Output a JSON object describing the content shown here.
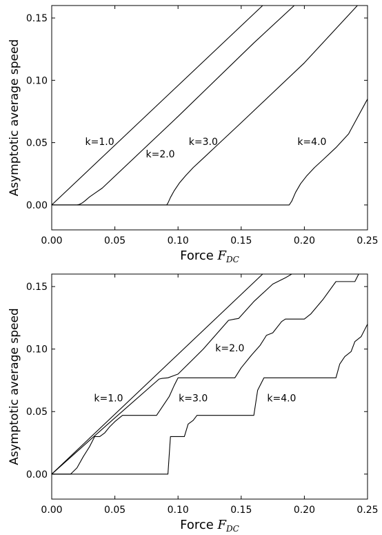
{
  "chart_data": [
    {
      "type": "line",
      "xlabel_prefix": "Force ",
      "xlabel_symbol": "F",
      "xlabel_subscript": "DC",
      "ylabel": "Asymptotic average speed",
      "xlim": [
        0.0,
        0.25
      ],
      "ylim": [
        -0.02,
        0.16
      ],
      "xticks": [
        0.0,
        0.05,
        0.1,
        0.15,
        0.2,
        0.25
      ],
      "xtick_labels": [
        "0.00",
        "0.05",
        "0.10",
        "0.15",
        "0.20",
        "0.25"
      ],
      "yticks": [
        0.0,
        0.05,
        0.1,
        0.15
      ],
      "ytick_labels": [
        "0.00",
        "0.05",
        "0.10",
        "0.15"
      ],
      "grid": false,
      "series": [
        {
          "name": "k=1.0",
          "x": [
            0.0,
            0.167
          ],
          "y": [
            0.0,
            0.16
          ]
        },
        {
          "name": "k=2.0",
          "x": [
            0.0,
            0.02,
            0.022,
            0.024,
            0.026,
            0.03,
            0.035,
            0.04,
            0.1,
            0.16,
            0.192
          ],
          "y": [
            0.0,
            0.0,
            0.0005,
            0.0015,
            0.003,
            0.0065,
            0.01,
            0.0135,
            0.071,
            0.13,
            0.16
          ]
        },
        {
          "name": "k=3.0",
          "x": [
            0.0,
            0.091,
            0.092,
            0.094,
            0.097,
            0.101,
            0.106,
            0.112,
            0.12,
            0.13,
            0.15,
            0.2,
            0.242
          ],
          "y": [
            0.0,
            0.0,
            0.0015,
            0.006,
            0.0115,
            0.0175,
            0.0235,
            0.03,
            0.0375,
            0.047,
            0.066,
            0.114,
            0.16
          ]
        },
        {
          "name": "k=4.0",
          "x": [
            0.0,
            0.188,
            0.19,
            0.193,
            0.197,
            0.202,
            0.208,
            0.215,
            0.225,
            0.235,
            0.25
          ],
          "y": [
            0.0,
            0.0,
            0.003,
            0.01,
            0.017,
            0.0235,
            0.03,
            0.0365,
            0.046,
            0.057,
            0.085
          ]
        }
      ],
      "annotations": [
        {
          "text": "k=1.0",
          "x": 0.038,
          "y": 0.051
        },
        {
          "text": "k=2.0",
          "x": 0.086,
          "y": 0.041
        },
        {
          "text": "k=3.0",
          "x": 0.12,
          "y": 0.051
        },
        {
          "text": "k=4.0",
          "x": 0.206,
          "y": 0.051
        }
      ]
    },
    {
      "type": "line",
      "xlabel_prefix": "Force ",
      "xlabel_symbol": "F",
      "xlabel_subscript": "DC",
      "ylabel": "Asymptotic average speed",
      "xlim": [
        0.0,
        0.25
      ],
      "ylim": [
        -0.02,
        0.16
      ],
      "xticks": [
        0.0,
        0.05,
        0.1,
        0.15,
        0.2,
        0.25
      ],
      "xtick_labels": [
        "0.00",
        "0.05",
        "0.10",
        "0.15",
        "0.20",
        "0.25"
      ],
      "yticks": [
        0.0,
        0.05,
        0.1,
        0.15
      ],
      "ytick_labels": [
        "0.00",
        "0.05",
        "0.10",
        "0.15"
      ],
      "grid": false,
      "series": [
        {
          "name": "k=1.0",
          "x": [
            0.0,
            0.167
          ],
          "y": [
            0.0,
            0.16
          ]
        },
        {
          "name": "k=2.0",
          "x": [
            0.0,
            0.05,
            0.085,
            0.087,
            0.092,
            0.1,
            0.12,
            0.14,
            0.145,
            0.148,
            0.16,
            0.175,
            0.185,
            0.19
          ],
          "y": [
            0.0,
            0.045,
            0.076,
            0.0765,
            0.077,
            0.08,
            0.1,
            0.123,
            0.124,
            0.1245,
            0.138,
            0.152,
            0.157,
            0.16
          ]
        },
        {
          "name": "k=3.0",
          "x": [
            0.0,
            0.015,
            0.02,
            0.025,
            0.03,
            0.034,
            0.038,
            0.042,
            0.046,
            0.05,
            0.056,
            0.083,
            0.087,
            0.093,
            0.097,
            0.1,
            0.145,
            0.15,
            0.158,
            0.165,
            0.17,
            0.175,
            0.182,
            0.185,
            0.2,
            0.205,
            0.215,
            0.225,
            0.24,
            0.243
          ],
          "y": [
            0.0,
            0.0,
            0.005,
            0.014,
            0.022,
            0.03,
            0.03,
            0.033,
            0.038,
            0.042,
            0.047,
            0.047,
            0.053,
            0.062,
            0.071,
            0.077,
            0.077,
            0.085,
            0.095,
            0.103,
            0.111,
            0.113,
            0.122,
            0.124,
            0.124,
            0.128,
            0.14,
            0.154,
            0.154,
            0.16
          ]
        },
        {
          "name": "k=4.0",
          "x": [
            0.0,
            0.092,
            0.094,
            0.1,
            0.105,
            0.108,
            0.112,
            0.115,
            0.16,
            0.163,
            0.168,
            0.172,
            0.225,
            0.228,
            0.232,
            0.237,
            0.24,
            0.245,
            0.25
          ],
          "y": [
            0.0,
            0.0,
            0.03,
            0.03,
            0.03,
            0.04,
            0.043,
            0.047,
            0.047,
            0.067,
            0.077,
            0.077,
            0.077,
            0.088,
            0.094,
            0.098,
            0.106,
            0.11,
            0.12
          ]
        }
      ],
      "annotations": [
        {
          "text": "k=1.0",
          "x": 0.045,
          "y": 0.061
        },
        {
          "text": "k=2.0",
          "x": 0.141,
          "y": 0.101
        },
        {
          "text": "k=3.0",
          "x": 0.112,
          "y": 0.061
        },
        {
          "text": "k=4.0",
          "x": 0.182,
          "y": 0.061
        }
      ]
    }
  ]
}
